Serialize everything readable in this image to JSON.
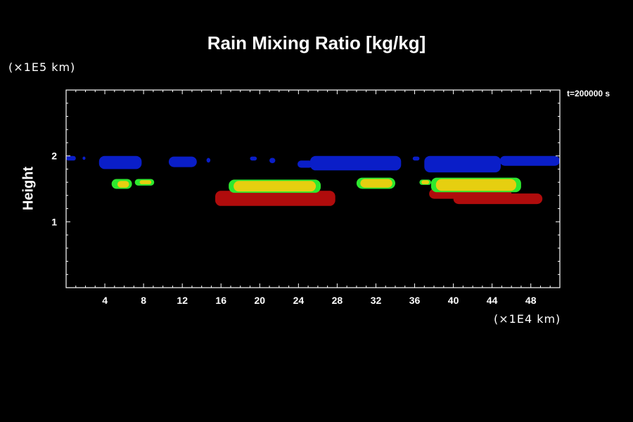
{
  "chart_data": {
    "type": "heatmap",
    "title": "Rain Mixing Ratio [kg/kg]",
    "ylabel": "Height",
    "yunit": "(×1E5 km)",
    "xunit": "(×1E4 km)",
    "time_label": "t=200000 s",
    "xlim": [
      0,
      51
    ],
    "ylim": [
      0,
      3
    ],
    "x_ticks": [
      4,
      8,
      12,
      16,
      20,
      24,
      28,
      32,
      36,
      40,
      44,
      48
    ],
    "x_tick_labels": [
      "4",
      "8",
      "12",
      "16",
      "20",
      "24",
      "28",
      "32",
      "36",
      "40",
      "44",
      "48"
    ],
    "y_ticks": [
      1,
      2
    ],
    "y_tick_labels": [
      "1",
      "2"
    ],
    "grid": false,
    "colors": {
      "blue": "#0a1ec8",
      "green": "#2ee82e",
      "yellow": "#e6cf10",
      "red": "#b00c0c"
    },
    "features": [
      {
        "color": "blue",
        "x0": 0.0,
        "x1": 1.0,
        "y0": 1.93,
        "y1": 2.0
      },
      {
        "color": "blue",
        "x0": 1.7,
        "x1": 2.0,
        "y0": 1.94,
        "y1": 1.99
      },
      {
        "color": "blue",
        "x0": 3.4,
        "x1": 7.8,
        "y0": 1.8,
        "y1": 2.0
      },
      {
        "color": "blue",
        "x0": 10.6,
        "x1": 13.5,
        "y0": 1.83,
        "y1": 1.99
      },
      {
        "color": "blue",
        "x0": 14.5,
        "x1": 14.9,
        "y0": 1.9,
        "y1": 1.97
      },
      {
        "color": "blue",
        "x0": 19.0,
        "x1": 19.7,
        "y0": 1.93,
        "y1": 1.99
      },
      {
        "color": "blue",
        "x0": 21.0,
        "x1": 21.6,
        "y0": 1.89,
        "y1": 1.97
      },
      {
        "color": "blue",
        "x0": 23.9,
        "x1": 25.5,
        "y0": 1.82,
        "y1": 1.93
      },
      {
        "color": "blue",
        "x0": 25.2,
        "x1": 34.6,
        "y0": 1.78,
        "y1": 2.0
      },
      {
        "color": "blue",
        "x0": 35.8,
        "x1": 36.5,
        "y0": 1.93,
        "y1": 1.99
      },
      {
        "color": "blue",
        "x0": 37.0,
        "x1": 44.9,
        "y0": 1.75,
        "y1": 2.0
      },
      {
        "color": "blue",
        "x0": 44.8,
        "x1": 51.0,
        "y0": 1.85,
        "y1": 2.0
      },
      {
        "color": "green",
        "x0": 4.7,
        "x1": 6.8,
        "y0": 1.5,
        "y1": 1.65
      },
      {
        "color": "yellow",
        "x0": 5.3,
        "x1": 6.5,
        "y0": 1.52,
        "y1": 1.62
      },
      {
        "color": "green",
        "x0": 7.1,
        "x1": 9.1,
        "y0": 1.55,
        "y1": 1.65
      },
      {
        "color": "yellow",
        "x0": 7.6,
        "x1": 8.8,
        "y0": 1.57,
        "y1": 1.63
      },
      {
        "color": "red",
        "x0": 15.4,
        "x1": 27.8,
        "y0": 1.24,
        "y1": 1.47
      },
      {
        "color": "green",
        "x0": 16.8,
        "x1": 26.3,
        "y0": 1.44,
        "y1": 1.64
      },
      {
        "color": "yellow",
        "x0": 17.3,
        "x1": 25.8,
        "y0": 1.46,
        "y1": 1.62
      },
      {
        "color": "green",
        "x0": 30.0,
        "x1": 34.0,
        "y0": 1.5,
        "y1": 1.67
      },
      {
        "color": "yellow",
        "x0": 30.4,
        "x1": 33.7,
        "y0": 1.52,
        "y1": 1.65
      },
      {
        "color": "green",
        "x0": 36.5,
        "x1": 37.7,
        "y0": 1.56,
        "y1": 1.64
      },
      {
        "color": "yellow",
        "x0": 36.7,
        "x1": 37.5,
        "y0": 1.57,
        "y1": 1.63
      },
      {
        "color": "red",
        "x0": 37.5,
        "x1": 46.0,
        "y0": 1.35,
        "y1": 1.5
      },
      {
        "color": "red",
        "x0": 40.0,
        "x1": 49.2,
        "y0": 1.27,
        "y1": 1.43
      },
      {
        "color": "green",
        "x0": 37.7,
        "x1": 47.0,
        "y0": 1.45,
        "y1": 1.67
      },
      {
        "color": "yellow",
        "x0": 38.2,
        "x1": 46.5,
        "y0": 1.47,
        "y1": 1.65
      }
    ]
  }
}
